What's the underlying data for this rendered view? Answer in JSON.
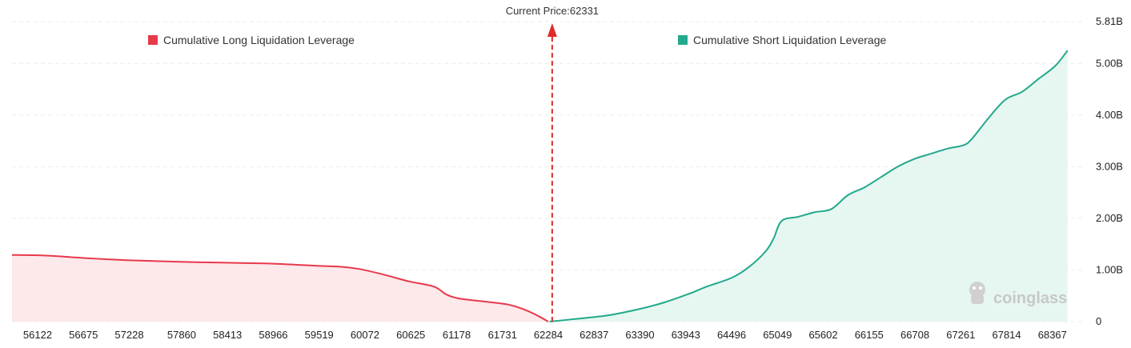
{
  "chart_data": {
    "type": "area",
    "x_ticks": [
      "56122",
      "56675",
      "57228",
      "57860",
      "58413",
      "58966",
      "59519",
      "60072",
      "60625",
      "61178",
      "61731",
      "62284",
      "62837",
      "63390",
      "63943",
      "64496",
      "65049",
      "65602",
      "66155",
      "66708",
      "67261",
      "67814",
      "68367"
    ],
    "y_ticks": [
      "0",
      "1.00B",
      "2.00B",
      "3.00B",
      "4.00B",
      "5.00B",
      "5.81B"
    ],
    "y_tick_values": [
      0,
      1.0,
      2.0,
      3.0,
      4.0,
      5.0,
      5.81
    ],
    "ylim": [
      0,
      5.81
    ],
    "y_unit": "B",
    "grid": true,
    "current_price": 62331,
    "current_price_label": "Current Price:62331",
    "legend": {
      "long_label": "Cumulative Long Liquidation Leverage",
      "short_label": "Cumulative Short Liquidation Leverage"
    },
    "colors": {
      "long_line": "#e8394c",
      "long_fill": "#fde8ea",
      "short_line": "#22a98c",
      "short_fill": "#e6f6f1",
      "marker": "#e02a2a",
      "grid": "#ececec"
    },
    "series": [
      {
        "name": "Cumulative Long Liquidation Leverage",
        "x": [
          55800,
          56200,
          56700,
          57200,
          57800,
          58400,
          59000,
          59500,
          59800,
          60000,
          60300,
          60600,
          60900,
          61050,
          61200,
          61500,
          61800,
          62000,
          62150,
          62284
        ],
        "values": [
          1.29,
          1.28,
          1.23,
          1.19,
          1.16,
          1.14,
          1.12,
          1.08,
          1.06,
          1.02,
          0.91,
          0.78,
          0.68,
          0.53,
          0.45,
          0.39,
          0.33,
          0.23,
          0.12,
          0.0
        ]
      },
      {
        "name": "Cumulative Short Liquidation Leverage",
        "x": [
          62300,
          62600,
          63000,
          63400,
          63700,
          64000,
          64200,
          64500,
          64700,
          64900,
          65000,
          65100,
          65300,
          65500,
          65700,
          65900,
          66100,
          66300,
          66500,
          66700,
          66900,
          67100,
          67300,
          67400,
          67600,
          67800,
          68000,
          68200,
          68400,
          68550
        ],
        "values": [
          0.0,
          0.05,
          0.12,
          0.25,
          0.38,
          0.55,
          0.68,
          0.85,
          1.05,
          1.35,
          1.6,
          1.95,
          2.03,
          2.12,
          2.18,
          2.45,
          2.6,
          2.8,
          3.0,
          3.15,
          3.25,
          3.35,
          3.42,
          3.55,
          3.95,
          4.3,
          4.45,
          4.7,
          4.95,
          5.25
        ]
      }
    ]
  },
  "watermark": "coinglass"
}
